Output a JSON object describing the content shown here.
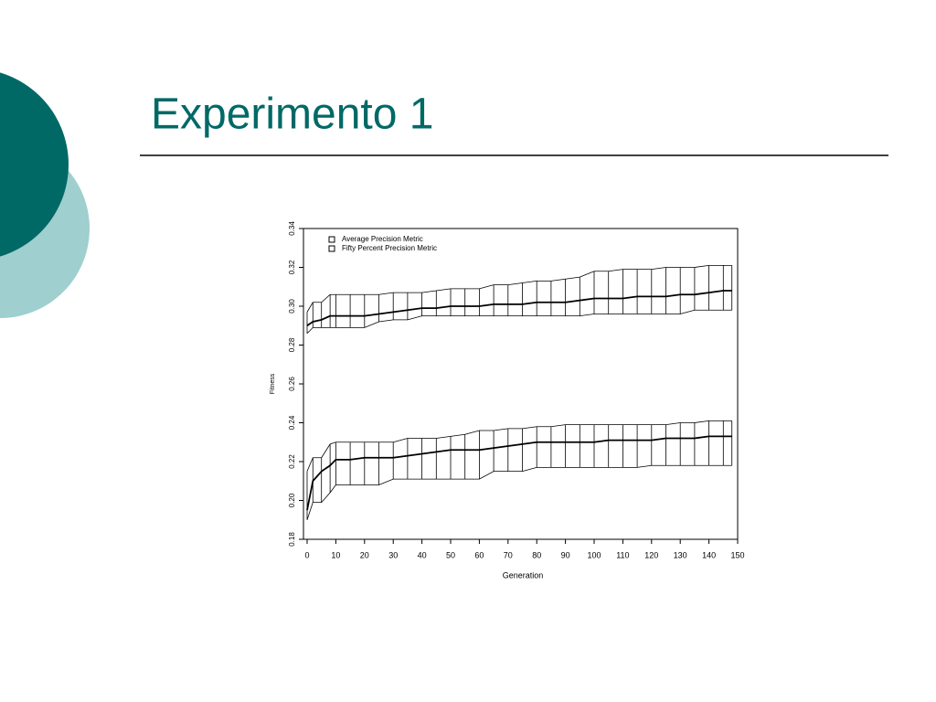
{
  "slide_title": "Experimento 1",
  "chart_data": {
    "type": "errorband",
    "xlabel": "Generation",
    "ylabel": "Fitness",
    "xlim": [
      0,
      150
    ],
    "xticks": [
      0,
      10,
      20,
      30,
      40,
      50,
      60,
      70,
      80,
      90,
      100,
      110,
      120,
      130,
      140,
      150
    ],
    "ylim": [
      0.18,
      0.34
    ],
    "yticks": [
      0.18,
      {
        "value": 0.2,
        "label": "0.20"
      },
      0.22,
      0.24,
      0.26,
      0.28,
      {
        "value": 0.3,
        "label": "0.30"
      },
      0.32,
      0.34
    ],
    "legend": "upper left",
    "x": [
      0,
      2,
      5,
      8,
      10,
      15,
      20,
      25,
      30,
      35,
      40,
      45,
      50,
      55,
      60,
      65,
      70,
      75,
      80,
      85,
      90,
      95,
      100,
      105,
      110,
      115,
      120,
      125,
      130,
      135,
      140,
      145,
      148
    ],
    "series": [
      {
        "name": "Average Precision Metric",
        "color": "#000000",
        "values": [
          0.29,
          0.292,
          0.293,
          0.295,
          0.295,
          0.295,
          0.295,
          0.296,
          0.297,
          0.298,
          0.299,
          0.299,
          0.3,
          0.3,
          0.3,
          0.301,
          0.301,
          0.301,
          0.302,
          0.302,
          0.302,
          0.303,
          0.304,
          0.304,
          0.304,
          0.305,
          0.305,
          0.305,
          0.306,
          0.306,
          0.307,
          0.308,
          0.308
        ],
        "upper": [
          0.297,
          0.302,
          0.302,
          0.306,
          0.306,
          0.306,
          0.306,
          0.306,
          0.307,
          0.307,
          0.307,
          0.308,
          0.309,
          0.309,
          0.309,
          0.311,
          0.311,
          0.312,
          0.313,
          0.313,
          0.314,
          0.315,
          0.318,
          0.318,
          0.319,
          0.319,
          0.319,
          0.32,
          0.32,
          0.32,
          0.321,
          0.321,
          0.321
        ],
        "lower": [
          0.286,
          0.289,
          0.289,
          0.289,
          0.289,
          0.289,
          0.289,
          0.292,
          0.293,
          0.293,
          0.295,
          0.295,
          0.295,
          0.295,
          0.295,
          0.295,
          0.295,
          0.295,
          0.295,
          0.295,
          0.295,
          0.295,
          0.296,
          0.296,
          0.296,
          0.296,
          0.296,
          0.296,
          0.296,
          0.298,
          0.298,
          0.298,
          0.298
        ]
      },
      {
        "name": "Fifty Percent Precision Metric",
        "color": "#000000",
        "values": [
          0.195,
          0.21,
          0.215,
          0.218,
          0.221,
          0.221,
          0.222,
          0.222,
          0.222,
          0.223,
          0.224,
          0.225,
          0.226,
          0.226,
          0.226,
          0.227,
          0.228,
          0.229,
          0.23,
          0.23,
          0.23,
          0.23,
          0.23,
          0.231,
          0.231,
          0.231,
          0.231,
          0.232,
          0.232,
          0.232,
          0.233,
          0.233,
          0.233
        ],
        "upper": [
          0.215,
          0.222,
          0.222,
          0.229,
          0.23,
          0.23,
          0.23,
          0.23,
          0.23,
          0.232,
          0.232,
          0.232,
          0.233,
          0.234,
          0.236,
          0.236,
          0.237,
          0.237,
          0.238,
          0.238,
          0.239,
          0.239,
          0.239,
          0.239,
          0.239,
          0.239,
          0.239,
          0.239,
          0.24,
          0.24,
          0.241,
          0.241,
          0.241
        ],
        "lower": [
          0.19,
          0.199,
          0.199,
          0.204,
          0.208,
          0.208,
          0.208,
          0.208,
          0.211,
          0.211,
          0.211,
          0.211,
          0.211,
          0.211,
          0.211,
          0.215,
          0.215,
          0.215,
          0.217,
          0.217,
          0.217,
          0.217,
          0.217,
          0.217,
          0.217,
          0.217,
          0.218,
          0.218,
          0.218,
          0.218,
          0.218,
          0.218,
          0.218
        ]
      }
    ]
  }
}
